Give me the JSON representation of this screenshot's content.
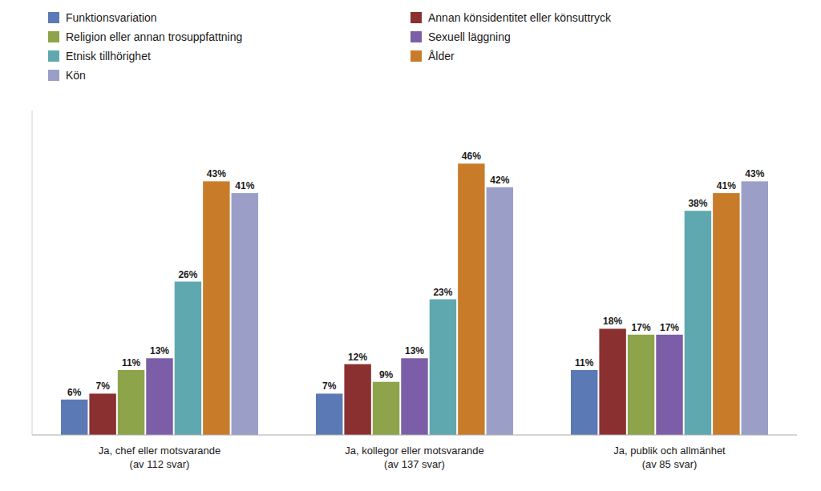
{
  "chart_data": {
    "type": "bar",
    "categories": [
      "Ja, chef eller motsvarande\n(av 112 svar)",
      "Ja, kollegor eller motsvarande\n(av 137 svar)",
      "Ja, publik och allmänhet\n(av 85 svar)"
    ],
    "series": [
      {
        "name": "Funktionsvariation",
        "color": "#5b7ab5",
        "values": [
          6,
          7,
          11
        ],
        "value_labels": [
          "6%",
          "7%",
          "11%"
        ]
      },
      {
        "name": "Annan könsidentitet eller könsuttryck",
        "color": "#8b3030",
        "values": [
          7,
          12,
          18
        ],
        "value_labels": [
          "7%",
          "12%",
          "18%"
        ]
      },
      {
        "name": "Religion eller annan trosuppfattning",
        "color": "#8da44a",
        "values": [
          11,
          9,
          17
        ],
        "value_labels": [
          "11%",
          "9%",
          "17%"
        ]
      },
      {
        "name": "Sexuell läggning",
        "color": "#7b5ea7",
        "values": [
          13,
          13,
          17
        ],
        "value_labels": [
          "13%",
          "13%",
          "17%"
        ]
      },
      {
        "name": "Etnisk tillhörighet",
        "color": "#5fa8b0",
        "values": [
          26,
          23,
          38
        ],
        "value_labels": [
          "26%",
          "23%",
          "38%"
        ]
      },
      {
        "name": "Ålder",
        "color": "#c87c2a",
        "values": [
          43,
          46,
          41
        ],
        "value_labels": [
          "43%",
          "46%",
          "41%"
        ]
      },
      {
        "name": "Kön",
        "color": "#9b9fc8",
        "values": [
          41,
          42,
          43
        ],
        "value_labels": [
          "41%",
          "42%",
          "43%"
        ]
      }
    ],
    "ylim": [
      0,
      55
    ],
    "yticks": [],
    "tick_labels": "x",
    "data_labels": true,
    "grid": false,
    "legend": "top"
  }
}
